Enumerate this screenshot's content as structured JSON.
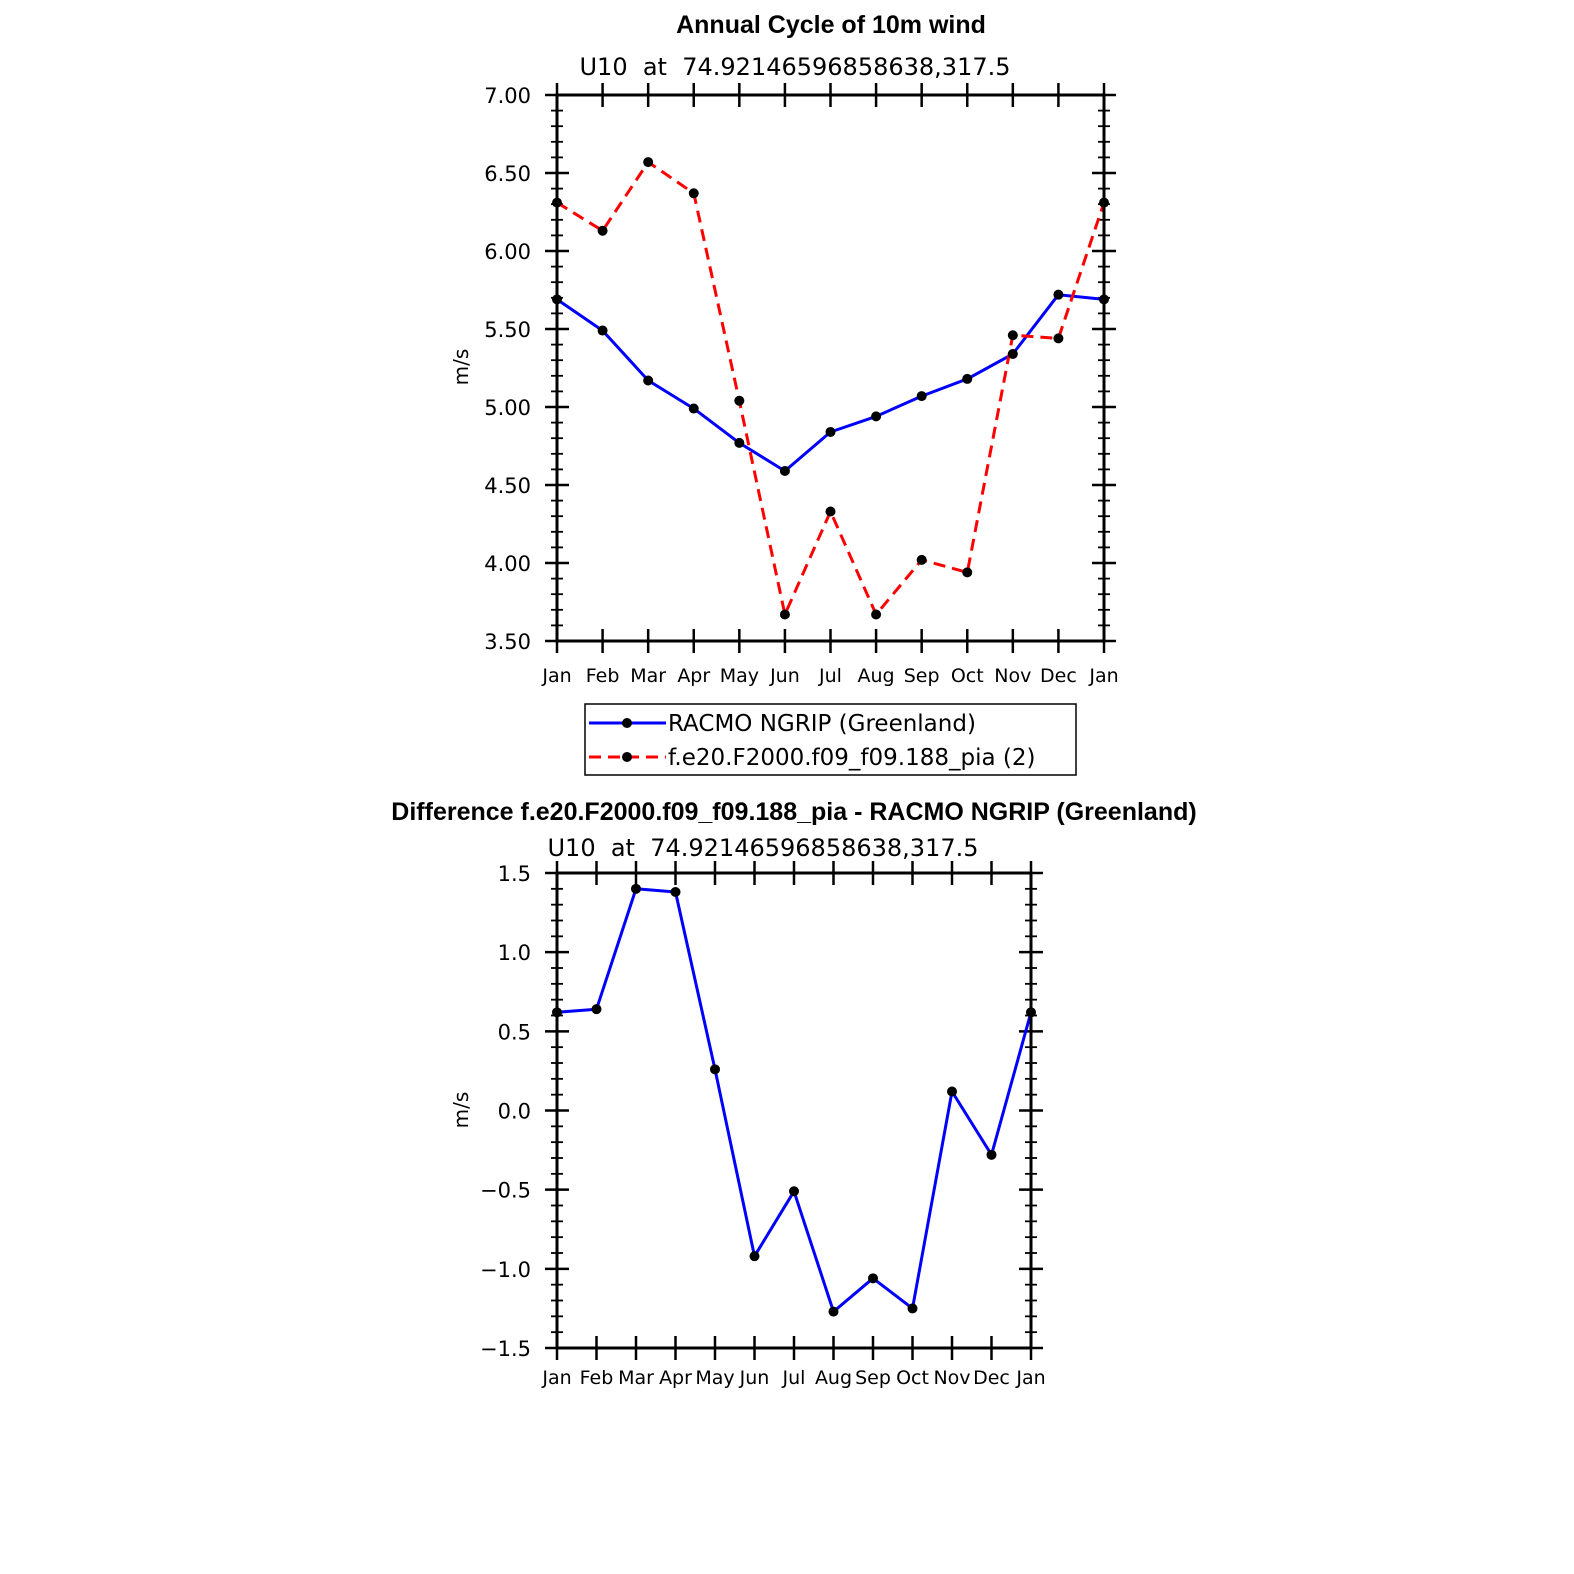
{
  "chart_data": [
    {
      "type": "line",
      "title": "Annual Cycle of 10m wind",
      "subtitle": "U10  at  74.92146596858638,317.5",
      "xlabel": "",
      "ylabel": "m/s",
      "categories": [
        "Jan",
        "Feb",
        "Mar",
        "Apr",
        "May",
        "Jun",
        "Jul",
        "Aug",
        "Sep",
        "Oct",
        "Nov",
        "Dec",
        "Jan"
      ],
      "ylim": [
        3.5,
        7.0
      ],
      "yticks": [
        "3.50",
        "4.00",
        "4.50",
        "5.00",
        "5.50",
        "6.00",
        "6.50",
        "7.00"
      ],
      "series": [
        {
          "name": "RACMO NGRIP (Greenland)",
          "color": "#0000ff",
          "dash": "solid",
          "values": [
            5.69,
            5.49,
            5.17,
            4.99,
            4.77,
            4.59,
            4.84,
            4.94,
            5.07,
            5.18,
            5.34,
            5.72,
            5.69
          ]
        },
        {
          "name": "f.e20.F2000.f09_f09.188_pia (2)",
          "color": "#ff0000",
          "dash": "dashed",
          "values": [
            6.31,
            6.13,
            6.57,
            6.37,
            5.04,
            3.67,
            4.33,
            3.67,
            4.02,
            3.94,
            5.46,
            5.44,
            6.31
          ]
        }
      ],
      "legend": "below"
    },
    {
      "type": "line",
      "title": "Difference f.e20.F2000.f09_f09.188_pia - RACMO NGRIP (Greenland)",
      "subtitle": "U10  at  74.92146596858638,317.5",
      "xlabel": "",
      "ylabel": "m/s",
      "categories": [
        "Jan",
        "Feb",
        "Mar",
        "Apr",
        "May",
        "Jun",
        "Jul",
        "Aug",
        "Sep",
        "Oct",
        "Nov",
        "Dec",
        "Jan"
      ],
      "ylim": [
        -1.5,
        1.5
      ],
      "yticks": [
        "−1.5",
        "−1.0",
        "−0.5",
        "0.0",
        "0.5",
        "1.0",
        "1.5"
      ],
      "series": [
        {
          "color": "#0000ff",
          "dash": "solid",
          "values": [
            0.62,
            0.64,
            1.4,
            1.38,
            0.26,
            -0.92,
            -0.51,
            -1.27,
            -1.06,
            -1.25,
            0.12,
            -0.28,
            0.62
          ]
        }
      ]
    }
  ]
}
